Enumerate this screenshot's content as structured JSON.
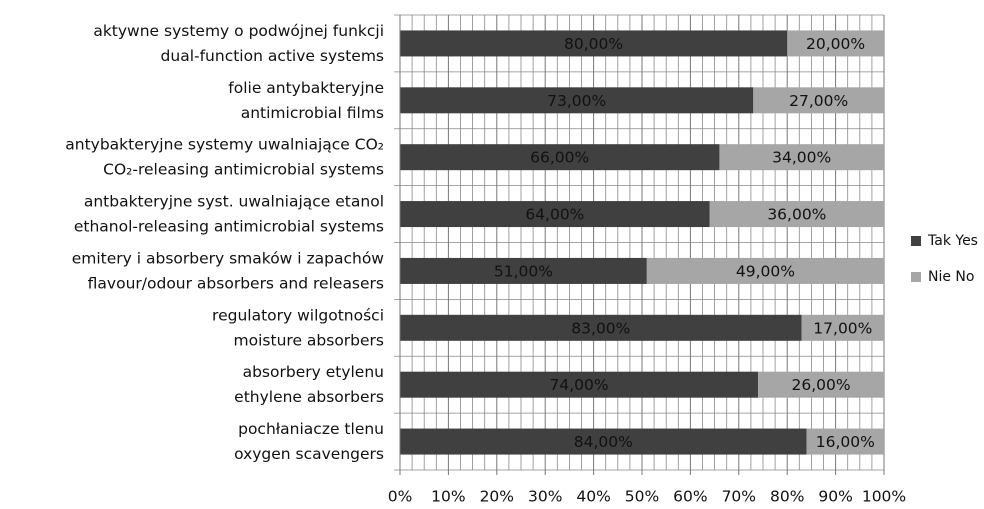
{
  "chart_data": {
    "type": "bar",
    "orientation": "horizontal",
    "stacked": true,
    "categories": [
      [
        "aktywne systemy o podwójnej funkcji",
        "dual-function active systems"
      ],
      [
        "folie antybakteryjne",
        "antimicrobial films"
      ],
      [
        "antybakteryjne systemy uwalniające CO₂",
        "CO₂-releasing antimicrobial systems"
      ],
      [
        "antbakteryjne syst. uwalniające etanol",
        "ethanol-releasing antimicrobial systems"
      ],
      [
        "emitery i absorbery smaków i zapachów",
        "flavour/odour absorbers and releasers"
      ],
      [
        "regulatory wilgotności",
        "moisture absorbers"
      ],
      [
        "absorbery etylenu",
        "ethylene absorbers"
      ],
      [
        "pochłaniacze tlenu",
        "oxygen scavengers"
      ]
    ],
    "series": [
      {
        "name": "Tak Yes",
        "color": "#404040",
        "values": [
          80,
          73,
          66,
          64,
          51,
          83,
          74,
          84
        ],
        "value_labels": [
          "80,00%",
          "73,00%",
          "66,00%",
          "64,00%",
          "51,00%",
          "83,00%",
          "74,00%",
          "84,00%"
        ]
      },
      {
        "name": "Nie No",
        "color": "#a6a6a6",
        "values": [
          20,
          27,
          34,
          36,
          49,
          17,
          26,
          16
        ],
        "value_labels": [
          "20,00%",
          "27,00%",
          "34,00%",
          "36,00%",
          "49,00%",
          "17,00%",
          "26,00%",
          "16,00%"
        ]
      }
    ],
    "xlim": [
      0,
      100
    ],
    "xticks": [
      {
        "value": 0,
        "label": "0%"
      },
      {
        "value": 10,
        "label": "10%"
      },
      {
        "value": 20,
        "label": "20%"
      },
      {
        "value": 30,
        "label": "30%"
      },
      {
        "value": 40,
        "label": "40%"
      },
      {
        "value": 50,
        "label": "50%"
      },
      {
        "value": 60,
        "label": "60%"
      },
      {
        "value": 70,
        "label": "70%"
      },
      {
        "value": 80,
        "label": "80%"
      },
      {
        "value": 90,
        "label": "90%"
      },
      {
        "value": 100,
        "label": "100%"
      }
    ],
    "grid": true,
    "legend": "right"
  }
}
